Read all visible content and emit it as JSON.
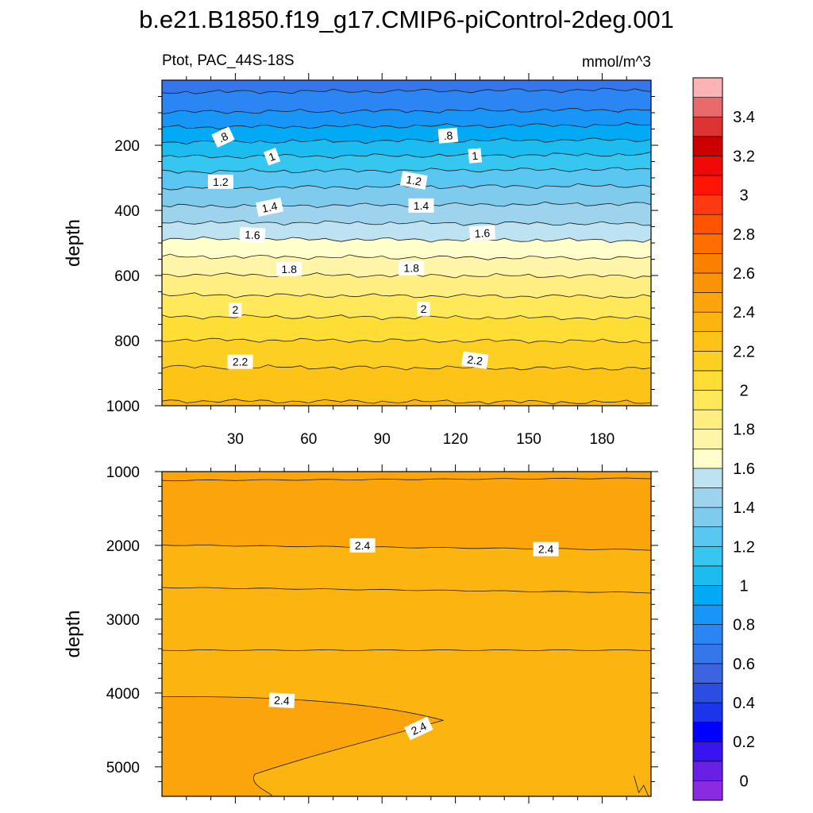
{
  "figure": {
    "title": "b.e21.B1850.f19_g17.CMIP6-piControl-2deg.001",
    "left_subtitle": "Ptot, PAC_44S-18S",
    "right_subtitle": "mmol/m^3"
  },
  "colors": {
    "frame": "#000000",
    "contour_line": "#1a1a1a",
    "label_box": "#ffffff"
  },
  "chart_data": [
    {
      "type": "filled-contour",
      "name": "upper-panel",
      "xlabel": "",
      "ylabel": "depth",
      "xlim": [
        0,
        200
      ],
      "ylim": [
        1000,
        0
      ],
      "xticks": [
        30,
        60,
        90,
        120,
        150,
        180
      ],
      "xtick_labels": [
        "30",
        "60",
        "90",
        "120",
        "150",
        "180"
      ],
      "yticks": [
        200,
        400,
        600,
        800,
        1000
      ],
      "ytick_labels": [
        "200",
        "400",
        "600",
        "800",
        "1000"
      ],
      "contour_interval": 0.1,
      "value_at_top": 0.65,
      "value_at_bottom": 2.32,
      "profile": [
        [
          0,
          0.66
        ],
        [
          50,
          0.72
        ],
        [
          100,
          0.81
        ],
        [
          150,
          0.92
        ],
        [
          200,
          1.03
        ],
        [
          250,
          1.14
        ],
        [
          300,
          1.25
        ],
        [
          350,
          1.34
        ],
        [
          400,
          1.43
        ],
        [
          450,
          1.52
        ],
        [
          500,
          1.62
        ],
        [
          550,
          1.71
        ],
        [
          600,
          1.8
        ],
        [
          650,
          1.88
        ],
        [
          700,
          1.96
        ],
        [
          750,
          2.03
        ],
        [
          800,
          2.1
        ],
        [
          850,
          2.16
        ],
        [
          900,
          2.22
        ],
        [
          950,
          2.27
        ],
        [
          1000,
          2.31
        ]
      ],
      "contour_labels": [
        {
          "text": ".8",
          "x": 25,
          "depth": 175
        },
        {
          "text": ".8",
          "x": 117,
          "depth": 170
        },
        {
          "text": "1",
          "x": 45,
          "depth": 235
        },
        {
          "text": "1",
          "x": 128,
          "depth": 232
        },
        {
          "text": "1.2",
          "x": 24,
          "depth": 312
        },
        {
          "text": "1.2",
          "x": 103,
          "depth": 308
        },
        {
          "text": "1.4",
          "x": 44,
          "depth": 390
        },
        {
          "text": "1.4",
          "x": 106,
          "depth": 385
        },
        {
          "text": "1.6",
          "x": 37,
          "depth": 475
        },
        {
          "text": "1.6",
          "x": 131,
          "depth": 470
        },
        {
          "text": "1.8",
          "x": 52,
          "depth": 580
        },
        {
          "text": "1.8",
          "x": 102,
          "depth": 577
        },
        {
          "text": "2",
          "x": 30,
          "depth": 705
        },
        {
          "text": "2",
          "x": 107,
          "depth": 703
        },
        {
          "text": "2.2",
          "x": 32,
          "depth": 865
        },
        {
          "text": "2.2",
          "x": 128,
          "depth": 860
        }
      ]
    },
    {
      "type": "filled-contour",
      "name": "lower-panel",
      "xlabel": "",
      "ylabel": "depth",
      "xlim": [
        0,
        200
      ],
      "ylim": [
        5400,
        1000
      ],
      "yticks": [
        1000,
        2000,
        3000,
        4000,
        5000
      ],
      "ytick_labels": [
        "1000",
        "2000",
        "3000",
        "4000",
        "5000"
      ],
      "contour_interval": 0.1,
      "regions": [
        {
          "value_range": [
            2.4,
            2.5
          ],
          "depth_range": [
            1000,
            2000
          ]
        },
        {
          "value_range": [
            2.3,
            2.4
          ],
          "depth_range": [
            2000,
            4050
          ]
        },
        {
          "value_range": [
            2.4,
            2.5
          ],
          "description": "deep tongue",
          "tip_x": 115,
          "tip_depth": 4370
        },
        {
          "value_range": [
            2.3,
            2.4
          ],
          "depth_range": [
            4050,
            5400
          ]
        }
      ],
      "contour_labels": [
        {
          "text": "2.4",
          "x": 82,
          "depth": 2000
        },
        {
          "text": "2.4",
          "x": 157,
          "depth": 2050
        },
        {
          "text": "2.4",
          "x": 49,
          "depth": 4100
        },
        {
          "text": "2.4",
          "x": 105,
          "depth": 4480
        }
      ]
    }
  ],
  "colorbar": {
    "levels_bottom_to_top": [
      -0.1,
      0,
      0.1,
      0.2,
      0.3,
      0.4,
      0.5,
      0.6,
      0.7,
      0.8,
      0.9,
      1.0,
      1.1,
      1.2,
      1.3,
      1.4,
      1.5,
      1.6,
      1.7,
      1.8,
      1.9,
      2.0,
      2.1,
      2.2,
      2.3,
      2.4,
      2.5,
      2.6,
      2.7,
      2.8,
      2.9,
      3.0,
      3.1,
      3.2,
      3.3,
      3.4,
      3.5
    ],
    "colors_bottom_to_top": [
      "#8a2be2",
      "#6a1fe6",
      "#3a14ee",
      "#0000ff",
      "#1b35ea",
      "#2c4de2",
      "#3c63e0",
      "#3576eb",
      "#2b86f4",
      "#1896f8",
      "#02a9f4",
      "#1cbcf0",
      "#36c7f0",
      "#5ac6f2",
      "#7ecbee",
      "#9dd3ed",
      "#bde2f2",
      "#ffffcc",
      "#fff5a8",
      "#ffee82",
      "#ffe85a",
      "#fedd35",
      "#fdcf22",
      "#fdc317",
      "#fcb410",
      "#fba40b",
      "#fb9308",
      "#fa8100",
      "#fe6e00",
      "#fd5400",
      "#ff3a12",
      "#fe1505",
      "#ef0a05",
      "#cc0000",
      "#dd3333",
      "#e86a6a",
      "#fbb3b3"
    ],
    "labels": [
      {
        "text": "0",
        "value": 0
      },
      {
        "text": "0.2",
        "value": 0.2
      },
      {
        "text": "0.4",
        "value": 0.4
      },
      {
        "text": "0.6",
        "value": 0.6
      },
      {
        "text": "0.8",
        "value": 0.8
      },
      {
        "text": "1",
        "value": 1.0
      },
      {
        "text": "1.2",
        "value": 1.2
      },
      {
        "text": "1.4",
        "value": 1.4
      },
      {
        "text": "1.6",
        "value": 1.6
      },
      {
        "text": "1.8",
        "value": 1.8
      },
      {
        "text": "2",
        "value": 2.0
      },
      {
        "text": "2.2",
        "value": 2.2
      },
      {
        "text": "2.4",
        "value": 2.4
      },
      {
        "text": "2.6",
        "value": 2.6
      },
      {
        "text": "2.8",
        "value": 2.8
      },
      {
        "text": "3",
        "value": 3.0
      },
      {
        "text": "3.2",
        "value": 3.2
      },
      {
        "text": "3.4",
        "value": 3.4
      }
    ]
  }
}
